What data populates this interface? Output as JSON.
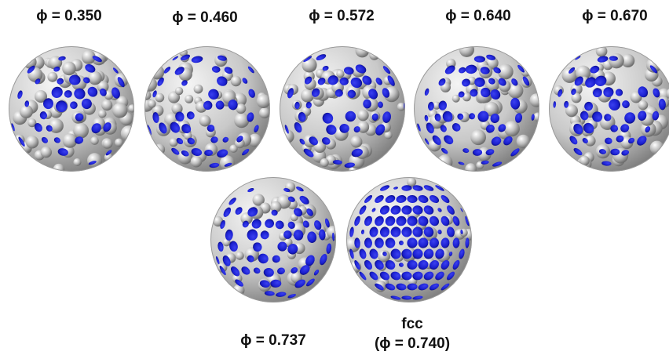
{
  "panels": [
    {
      "label": "ϕ = 0.350",
      "blue_fraction": 0.35,
      "style": "sparse"
    },
    {
      "label": "ϕ = 0.460",
      "blue_fraction": 0.5,
      "style": "medium"
    },
    {
      "label": "ϕ = 0.572",
      "blue_fraction": 0.48,
      "style": "medium"
    },
    {
      "label": "ϕ = 0.640",
      "blue_fraction": 0.62,
      "style": "dense"
    },
    {
      "label": "ϕ = 0.670",
      "blue_fraction": 0.55,
      "style": "dense"
    },
    {
      "label": "ϕ = 0.737",
      "blue_fraction": 0.75,
      "style": "dense"
    },
    {
      "label_line1": "fcc",
      "label_line2": "(ϕ = 0.740)",
      "blue_fraction": 0.95,
      "style": "ordered"
    }
  ],
  "colors": {
    "blue": "#1a1fcf",
    "blue_dark": "#0a0c7a",
    "gray": "#c9c9c9",
    "gray_dark": "#7d7d7d",
    "background": "#ffffff"
  }
}
